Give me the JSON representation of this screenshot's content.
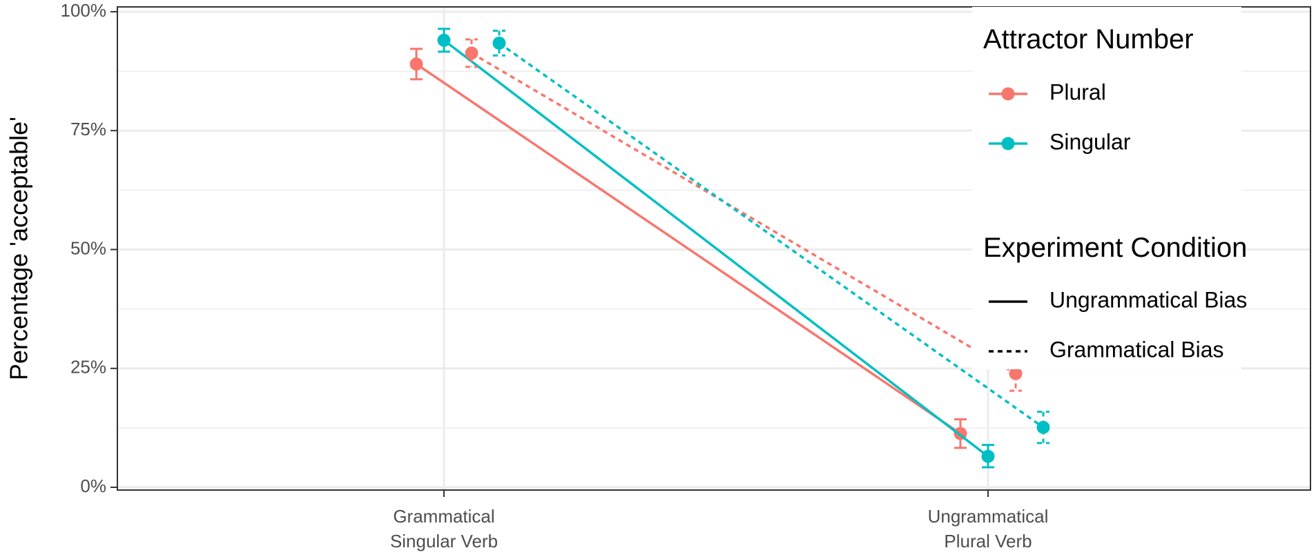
{
  "chart_data": {
    "type": "line",
    "title": "",
    "xlabel": "",
    "ylabel": "Percentage 'acceptable'",
    "categories": [
      "Grammatical\nSingular Verb",
      "Ungrammatical\nPlural Verb"
    ],
    "y_ticks": [
      "0%",
      "25%",
      "50%",
      "75%",
      "100%"
    ],
    "ylim": [
      0,
      100
    ],
    "grid": true,
    "error_bars": true,
    "legend_position": "right",
    "colors": {
      "Plural": "#F8766D",
      "Singular": "#00BFC4"
    },
    "legends": [
      {
        "title": "Attractor Number",
        "entries": [
          "Plural",
          "Singular"
        ]
      },
      {
        "title": "Experiment Condition",
        "entries": [
          "Ungrammatical Bias",
          "Grammatical Bias"
        ]
      }
    ],
    "series": [
      {
        "attractor": "Plural",
        "condition": "Ungrammatical Bias",
        "linetype": "solid",
        "values": [
          89,
          11.3
        ],
        "lower": [
          85.8,
          8.3
        ],
        "upper": [
          92.2,
          14.3
        ]
      },
      {
        "attractor": "Singular",
        "condition": "Ungrammatical Bias",
        "linetype": "solid",
        "values": [
          94,
          6.5
        ],
        "lower": [
          91.6,
          4.2
        ],
        "upper": [
          96.4,
          8.9
        ]
      },
      {
        "attractor": "Plural",
        "condition": "Grammatical Bias",
        "linetype": "dashed",
        "values": [
          91.3,
          23.9
        ],
        "lower": [
          88.4,
          20.3
        ],
        "upper": [
          94.2,
          27.5
        ]
      },
      {
        "attractor": "Singular",
        "condition": "Grammatical Bias",
        "linetype": "dashed",
        "values": [
          93.4,
          12.6
        ],
        "lower": [
          90.8,
          9.3
        ],
        "upper": [
          96,
          15.9
        ]
      }
    ]
  }
}
